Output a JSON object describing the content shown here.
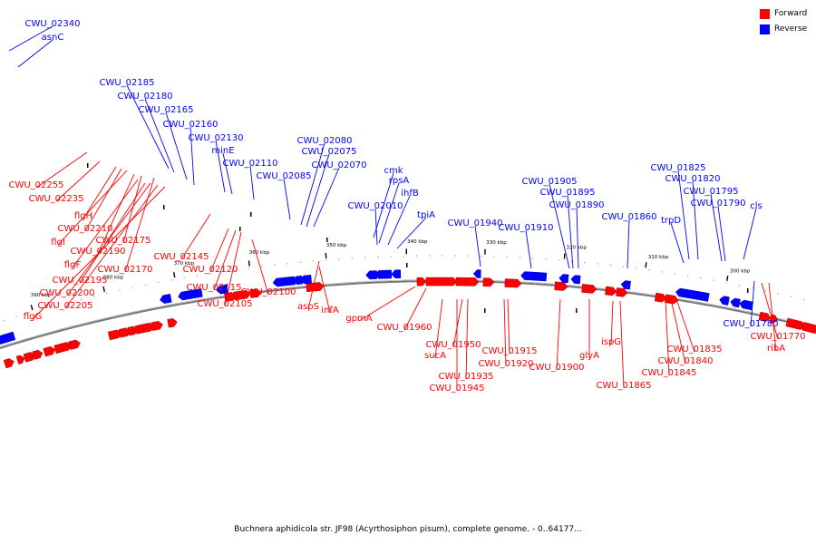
{
  "colors": {
    "forward": "#ff0000",
    "reverse": "#0000ff",
    "backbone": "#777777"
  },
  "legend": [
    {
      "label": "Forward",
      "color": "#ff0000"
    },
    {
      "label": "Reverse",
      "color": "#0000ff"
    }
  ],
  "caption": "Buchnera aphidicola str. JF98 (Acyrthosiphon pisum), complete genome. - 0..64177...",
  "ticks": [
    "390 kbp",
    "380 kbp",
    "370 kbp",
    "360 kbp",
    "350 kbp",
    "340 kbp",
    "330 kbp",
    "320 kbp",
    "310 kbp",
    "300 kbp"
  ],
  "reverse_labels": [
    "CWU_02340",
    "asnC",
    "CWU_02185",
    "CWU_02180",
    "CWU_02165",
    "CWU_02160",
    "CWU_02130",
    "minE",
    "CWU_02110",
    "CWU_02085",
    "CWU_02080",
    "CWU_02075",
    "CWU_02070",
    "cmk",
    "rpsA",
    "ihfB",
    "CWU_02010",
    "tpiA",
    "CWU_01940",
    "CWU_01910",
    "CWU_01905",
    "CWU_01895",
    "CWU_01890",
    "CWU_01860",
    "CWU_01825",
    "CWU_01820",
    "trpD",
    "CWU_01795",
    "CWU_01790",
    "cls",
    "CWU_01780"
  ],
  "forward_labels": [
    "CWU_02255",
    "CWU_02235",
    "flgH",
    "CWU_02210",
    "flgI",
    "CWU_02175",
    "CWU_02190",
    "flgF",
    "CWU_02170",
    "CWU_02195",
    "CWU_02200",
    "CWU_02205",
    "flgG",
    "CWU_02145",
    "CWU_02120",
    "CWU_02115",
    "CWU_02105",
    "CWU_02100",
    "aspS",
    "infA",
    "gpmA",
    "CWU_01960",
    "CWU_01950",
    "sucA",
    "CWU_01935",
    "CWU_01945",
    "CWU_01915",
    "CWU_01920",
    "CWU_01900",
    "glyA",
    "ispG",
    "CWU_01865",
    "CWU_01835",
    "CWU_01840",
    "CWU_01845",
    "CWU_01770",
    "ribA"
  ]
}
